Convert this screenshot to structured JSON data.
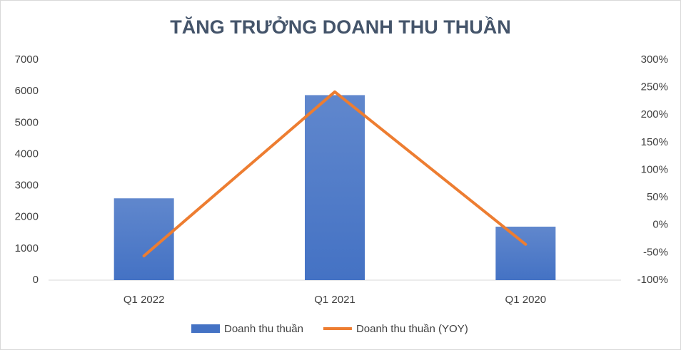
{
  "chart_data": {
    "type": "bar-line",
    "title": "TĂNG TRƯỞNG DOANH THU THUẦN",
    "categories": [
      "Q1 2022",
      "Q1 2021",
      "Q1 2020"
    ],
    "series": [
      {
        "name": "Doanh thu thuần",
        "type": "bar",
        "color": "#4472c4",
        "values": [
          2600,
          5880,
          1700
        ]
      },
      {
        "name": "Doanh thu thuần (YOY)",
        "type": "line",
        "color": "#ed7d31",
        "axis": "y2",
        "values": [
          -56,
          242,
          -35
        ]
      }
    ],
    "ylim": [
      0,
      7000
    ],
    "yticks": [
      0,
      1000,
      2000,
      3000,
      4000,
      5000,
      6000,
      7000
    ],
    "y2lim": [
      -100,
      300
    ],
    "y2ticks": [
      {
        "value": -100,
        "label": "-100%"
      },
      {
        "value": -50,
        "label": "-50%"
      },
      {
        "value": 0,
        "label": "0%"
      },
      {
        "value": 50,
        "label": "50%"
      },
      {
        "value": 100,
        "label": "100%"
      },
      {
        "value": 150,
        "label": "150%"
      },
      {
        "value": 200,
        "label": "200%"
      },
      {
        "value": 250,
        "label": "250%"
      },
      {
        "value": 300,
        "label": "300%"
      }
    ],
    "grid": false,
    "legend": "bottom"
  }
}
